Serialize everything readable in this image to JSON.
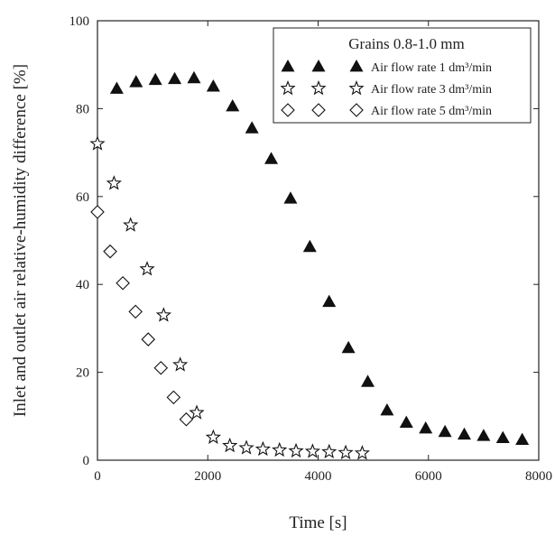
{
  "chart_data": {
    "type": "scatter",
    "xlabel": "Time [s]",
    "ylabel": "Inlet and outlet air relative-humidity difference [%]",
    "xlim": [
      0,
      8000
    ],
    "ylim": [
      0,
      100
    ],
    "xticks": [
      0,
      2000,
      4000,
      6000,
      8000
    ],
    "yticks": [
      0,
      20,
      40,
      60,
      80,
      100
    ],
    "grid": false,
    "legend": {
      "title": "Grains 0.8-1.0 mm",
      "placement": "top-right"
    },
    "series": [
      {
        "name": "Air flow rate 1 dm³/min",
        "marker": "filled-triangle",
        "color": "#111111",
        "points": [
          [
            350,
            84.5
          ],
          [
            700,
            86.0
          ],
          [
            1050,
            86.5
          ],
          [
            1400,
            86.7
          ],
          [
            1750,
            86.9
          ],
          [
            2100,
            85.0
          ],
          [
            2450,
            80.5
          ],
          [
            2800,
            75.5
          ],
          [
            3150,
            68.5
          ],
          [
            3500,
            59.5
          ],
          [
            3850,
            48.5
          ],
          [
            4200,
            36.0
          ],
          [
            4550,
            25.5
          ],
          [
            4900,
            17.8
          ],
          [
            5250,
            11.3
          ],
          [
            5600,
            8.5
          ],
          [
            5950,
            7.2
          ],
          [
            6300,
            6.4
          ],
          [
            6650,
            5.8
          ],
          [
            7000,
            5.5
          ],
          [
            7350,
            5.0
          ],
          [
            7700,
            4.6
          ]
        ]
      },
      {
        "name": "Air flow rate 3 dm³/min",
        "marker": "open-star",
        "color": "#111111",
        "points": [
          [
            0,
            72.0
          ],
          [
            300,
            63.0
          ],
          [
            600,
            53.5
          ],
          [
            900,
            43.5
          ],
          [
            1200,
            33.0
          ],
          [
            1500,
            21.7
          ],
          [
            1800,
            10.8
          ],
          [
            2100,
            5.2
          ],
          [
            2400,
            3.3
          ],
          [
            2700,
            2.8
          ],
          [
            3000,
            2.5
          ],
          [
            3300,
            2.3
          ],
          [
            3600,
            2.1
          ],
          [
            3900,
            2.0
          ],
          [
            4200,
            1.9
          ],
          [
            4500,
            1.7
          ],
          [
            4800,
            1.6
          ]
        ]
      },
      {
        "name": "Air flow rate 5 dm³/min",
        "marker": "open-diamond",
        "color": "#111111",
        "points": [
          [
            0,
            56.5
          ],
          [
            230,
            47.5
          ],
          [
            460,
            40.3
          ],
          [
            690,
            33.8
          ],
          [
            920,
            27.5
          ],
          [
            1150,
            21.0
          ],
          [
            1380,
            14.3
          ],
          [
            1610,
            9.3
          ]
        ]
      }
    ]
  }
}
